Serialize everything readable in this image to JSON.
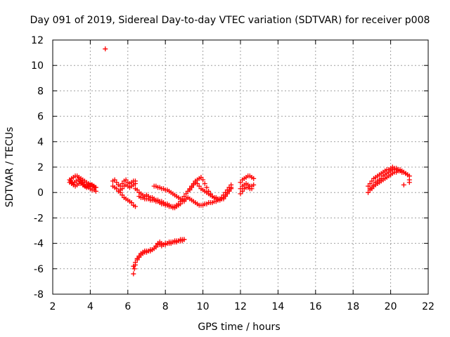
{
  "chart_data": {
    "type": "scatter",
    "title": "Day 091 of 2019, Sidereal Day-to-day VTEC variation (SDTVAR) for receiver p008",
    "xlabel": "GPS time / hours",
    "ylabel": "SDTVAR / TECUs",
    "xlim": [
      2,
      22
    ],
    "ylim": [
      -8,
      12
    ],
    "xticks": [
      2,
      4,
      6,
      8,
      10,
      12,
      14,
      16,
      18,
      20,
      22
    ],
    "yticks": [
      -8,
      -6,
      -4,
      -2,
      0,
      2,
      4,
      6,
      8,
      10,
      12
    ],
    "grid": true,
    "marker": "+",
    "color": "#ff0000",
    "series": [
      {
        "name": "SDTVAR",
        "x": [
          2.9,
          3.0,
          3.1,
          3.2,
          3.3,
          3.4,
          3.5,
          3.6,
          3.7,
          3.8,
          3.9,
          4.0,
          4.1,
          4.2,
          4.3,
          2.9,
          3.0,
          3.1,
          3.2,
          3.3,
          3.4,
          3.5,
          3.6,
          3.7,
          3.8,
          3.9,
          4.0,
          4.1,
          4.2,
          4.3,
          2.95,
          3.05,
          3.15,
          3.25,
          3.35,
          3.45,
          3.55,
          3.65,
          3.75,
          3.85,
          3.95,
          4.05,
          4.15,
          4.25,
          4.8,
          5.2,
          5.3,
          5.4,
          5.5,
          5.6,
          5.7,
          5.8,
          5.9,
          6.0,
          6.1,
          6.2,
          6.3,
          6.4,
          5.2,
          5.3,
          5.4,
          5.5,
          5.6,
          5.7,
          5.8,
          5.9,
          6.0,
          6.1,
          6.2,
          6.3,
          6.4,
          5.6,
          5.7,
          5.8,
          5.9,
          6.0,
          6.1,
          6.2,
          6.3,
          6.4,
          6.3,
          6.4,
          6.5,
          6.6,
          6.7,
          6.8,
          6.9,
          7.0,
          7.1,
          7.2,
          7.3,
          7.4,
          7.5,
          7.6,
          7.7,
          7.8,
          7.9,
          8.0,
          8.1,
          8.2,
          8.3,
          8.4,
          8.5,
          8.6,
          8.7,
          8.8,
          8.9,
          9.0,
          6.4,
          6.5,
          6.6,
          6.7,
          6.8,
          6.9,
          7.0,
          7.1,
          7.2,
          7.3,
          7.4,
          7.5,
          7.6,
          7.7,
          7.8,
          7.9,
          8.0,
          8.1,
          8.2,
          8.3,
          8.4,
          8.5,
          8.6,
          8.7,
          8.8,
          8.9,
          9.0,
          9.1,
          9.2,
          9.3,
          9.4,
          9.5,
          9.6,
          9.7,
          9.8,
          9.9,
          10.0,
          10.1,
          10.2,
          10.3,
          10.4,
          10.5,
          10.6,
          10.7,
          10.8,
          10.9,
          11.0,
          11.1,
          11.2,
          11.3,
          11.4,
          11.5,
          6.6,
          6.7,
          6.8,
          6.9,
          7.0,
          7.1,
          7.2,
          7.3,
          7.4,
          7.5,
          7.6,
          7.7,
          7.8,
          7.9,
          8.0,
          8.1,
          8.2,
          8.3,
          8.4,
          8.5,
          8.6,
          8.7,
          8.8,
          8.9,
          9.0,
          9.1,
          9.2,
          9.3,
          9.4,
          9.5,
          9.6,
          9.7,
          9.8,
          9.9,
          10.0,
          10.1,
          10.2,
          10.3,
          10.4,
          10.5,
          10.6,
          10.7,
          10.8,
          10.9,
          11.0,
          11.1,
          11.2,
          11.3,
          11.4,
          11.5,
          7.4,
          7.5,
          7.6,
          7.7,
          7.8,
          7.9,
          8.0,
          8.1,
          8.2,
          8.3,
          8.4,
          8.5,
          8.6,
          8.7,
          8.8,
          8.9,
          9.0,
          9.3,
          9.4,
          9.5,
          9.6,
          9.7,
          9.8,
          9.9,
          10.0,
          10.1,
          10.2,
          10.3,
          10.4,
          10.5,
          10.6,
          10.7,
          10.8,
          10.9,
          11.0,
          11.1,
          11.2,
          11.3,
          11.4,
          11.5,
          12.0,
          12.1,
          12.2,
          12.3,
          12.4,
          12.5,
          12.6,
          12.7,
          12.0,
          12.1,
          12.2,
          12.3,
          12.4,
          12.5,
          12.6,
          12.7,
          12.0,
          12.1,
          12.2,
          12.3,
          12.4,
          12.5,
          12.6,
          6.3,
          6.35,
          6.4,
          6.5,
          6.6,
          6.7,
          6.8,
          6.9,
          7.0,
          7.1,
          7.2,
          7.3,
          7.4,
          7.5,
          7.6,
          7.7,
          7.8,
          7.9,
          8.0,
          8.1,
          8.2,
          8.3,
          8.4,
          8.5,
          8.6,
          8.7,
          8.8,
          8.9,
          9.0,
          18.8,
          18.9,
          19.0,
          19.1,
          19.2,
          19.3,
          19.4,
          19.5,
          19.6,
          19.7,
          19.8,
          19.9,
          20.0,
          20.1,
          20.2,
          20.3,
          20.4,
          20.5,
          20.6,
          20.7,
          20.8,
          20.9,
          21.0,
          18.8,
          18.9,
          19.0,
          19.1,
          19.2,
          19.3,
          19.4,
          19.5,
          19.6,
          19.7,
          19.8,
          19.9,
          20.0,
          20.1,
          20.2,
          20.3,
          20.4,
          20.5,
          20.6,
          20.7,
          20.8,
          20.9,
          21.0,
          18.9,
          19.0,
          19.1,
          19.2,
          19.3,
          19.4,
          19.5,
          19.6,
          19.7,
          19.8,
          19.9,
          20.0,
          20.1,
          20.2,
          20.3,
          20.4,
          20.5,
          20.6,
          20.7,
          21.0
        ],
        "y": [
          1.0,
          1.1,
          1.2,
          1.3,
          1.3,
          1.2,
          1.1,
          1.0,
          0.9,
          0.8,
          0.7,
          0.6,
          0.6,
          0.5,
          0.4,
          0.8,
          0.7,
          0.6,
          0.5,
          0.6,
          0.7,
          0.7,
          0.6,
          0.5,
          0.4,
          0.4,
          0.3,
          0.2,
          0.2,
          0.1,
          0.9,
          0.8,
          0.8,
          0.9,
          1.0,
          0.9,
          0.8,
          0.6,
          0.5,
          0.5,
          0.6,
          0.6,
          0.5,
          0.4,
          11.3,
          0.5,
          0.4,
          0.3,
          0.1,
          0.0,
          -0.2,
          -0.4,
          -0.5,
          -0.6,
          -0.7,
          -0.8,
          -1.0,
          -1.1,
          0.9,
          1.0,
          0.8,
          0.6,
          0.5,
          0.7,
          0.9,
          1.0,
          0.8,
          0.7,
          0.8,
          0.9,
          0.9,
          0.2,
          0.3,
          0.5,
          0.6,
          0.5,
          0.4,
          0.5,
          0.6,
          0.7,
          -5.8,
          -5.5,
          -5.2,
          -5.0,
          -4.8,
          -4.7,
          -4.6,
          -4.6,
          -4.6,
          -4.5,
          -4.5,
          -4.4,
          -4.3,
          -4.1,
          -3.9,
          -4.0,
          -4.1,
          -4.0,
          -4.0,
          -3.9,
          -3.9,
          -3.9,
          -3.8,
          -3.8,
          -3.8,
          -3.7,
          -3.7,
          -3.7,
          0.3,
          0.2,
          0.0,
          -0.1,
          -0.2,
          -0.3,
          -0.2,
          -0.3,
          -0.4,
          -0.4,
          -0.5,
          -0.6,
          -0.6,
          -0.7,
          -0.7,
          -0.8,
          -0.9,
          -0.9,
          -1.0,
          -1.1,
          -1.1,
          -1.1,
          -1.0,
          -0.9,
          -0.7,
          -0.5,
          -0.3,
          -0.1,
          0.1,
          0.3,
          0.5,
          0.7,
          0.9,
          1.0,
          1.1,
          1.2,
          1.0,
          0.7,
          0.4,
          0.1,
          -0.1,
          -0.3,
          -0.4,
          -0.5,
          -0.6,
          -0.6,
          -0.5,
          -0.5,
          -0.3,
          -0.1,
          0.1,
          0.3,
          -0.3,
          -0.4,
          -0.4,
          -0.5,
          -0.5,
          -0.5,
          -0.6,
          -0.6,
          -0.6,
          -0.7,
          -0.7,
          -0.8,
          -0.9,
          -0.9,
          -1.0,
          -1.0,
          -1.1,
          -1.1,
          -1.2,
          -1.2,
          -1.1,
          -1.0,
          -0.9,
          -0.7,
          -0.6,
          -0.5,
          -0.4,
          -0.5,
          -0.6,
          -0.7,
          -0.8,
          -0.9,
          -1.0,
          -1.0,
          -1.0,
          -0.9,
          -0.9,
          -0.8,
          -0.8,
          -0.8,
          -0.7,
          -0.7,
          -0.6,
          -0.6,
          -0.5,
          -0.4,
          -0.2,
          0.0,
          0.2,
          0.4,
          0.5,
          0.5,
          0.4,
          0.4,
          0.3,
          0.3,
          0.2,
          0.2,
          0.1,
          0.0,
          -0.1,
          -0.2,
          -0.3,
          -0.4,
          -0.5,
          -0.6,
          -0.7,
          0.2,
          0.4,
          0.6,
          0.8,
          0.7,
          0.5,
          0.3,
          0.2,
          0.1,
          0.0,
          -0.1,
          -0.2,
          -0.3,
          -0.4,
          -0.4,
          -0.5,
          -0.5,
          -0.4,
          -0.2,
          0.0,
          0.2,
          0.4,
          0.6,
          0.8,
          1.0,
          1.1,
          1.2,
          1.3,
          1.3,
          1.2,
          1.1,
          0.3,
          0.5,
          0.6,
          0.7,
          0.6,
          0.5,
          0.5,
          0.6,
          -0.1,
          0.1,
          0.3,
          0.4,
          0.4,
          0.3,
          0.3,
          -6.4,
          -6.0,
          -5.7,
          -5.3,
          -5.1,
          -4.9,
          -4.8,
          -4.7,
          -4.7,
          -4.6,
          -4.6,
          -4.5,
          -4.4,
          -4.2,
          -4.0,
          -4.1,
          -4.2,
          -4.1,
          -4.1,
          -4.0,
          -4.0,
          -4.0,
          -3.9,
          -3.9,
          -3.9,
          -3.8,
          -3.8,
          -3.8,
          -3.7,
          0.5,
          0.7,
          0.9,
          1.1,
          1.2,
          1.3,
          1.4,
          1.5,
          1.6,
          1.7,
          1.8,
          1.8,
          1.9,
          2.0,
          1.9,
          1.9,
          1.8,
          1.8,
          1.7,
          1.6,
          1.5,
          1.4,
          1.3,
          0.0,
          0.2,
          0.3,
          0.5,
          0.6,
          0.7,
          0.8,
          0.9,
          1.0,
          1.1,
          1.2,
          1.3,
          1.4,
          1.5,
          1.6,
          1.6,
          1.7,
          1.7,
          1.6,
          1.6,
          1.5,
          1.4,
          1.0,
          0.3,
          0.4,
          0.6,
          0.8,
          0.9,
          1.0,
          1.1,
          1.3,
          1.4,
          1.5,
          1.6,
          1.7,
          1.8,
          1.8,
          1.8,
          1.8,
          1.7,
          1.6,
          0.6,
          0.8
        ]
      }
    ]
  }
}
